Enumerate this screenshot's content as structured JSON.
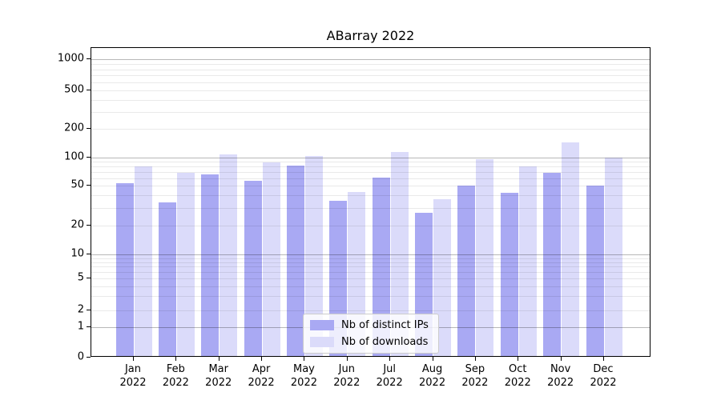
{
  "chart_data": {
    "type": "bar",
    "title": "ABarray 2022",
    "categories": [
      "Jan 2022",
      "Feb 2022",
      "Mar 2022",
      "Apr 2022",
      "May 2022",
      "Jun 2022",
      "Jul 2022",
      "Aug 2022",
      "Sep 2022",
      "Oct 2022",
      "Nov 2022",
      "Dec 2022"
    ],
    "series": [
      {
        "name": "Nb of distinct IPs",
        "color": "#a9a9f3",
        "values": [
          51,
          33,
          63,
          54,
          79,
          34,
          59,
          26,
          48,
          41,
          66,
          48
        ]
      },
      {
        "name": "Nb of downloads",
        "color": "#dbdbfa",
        "values": [
          77,
          66,
          104,
          85,
          100,
          42,
          110,
          35,
          92,
          77,
          139,
          96
        ]
      }
    ],
    "xlabel": "",
    "ylabel": "",
    "y_axis": {
      "scale": "log-like (0 baseline, log above 1)",
      "ticks": [
        0,
        1,
        2,
        5,
        10,
        20,
        50,
        100,
        200,
        500,
        1000
      ],
      "range": [
        0,
        1400
      ],
      "major_grid_at": [
        1,
        10,
        100,
        1000
      ],
      "grid": true
    },
    "legend": {
      "position": "lower center",
      "entries": [
        "Nb of distinct IPs",
        "Nb of downloads"
      ]
    }
  },
  "colors": {
    "bar_distinct_ips": "#a9a9f3",
    "bar_downloads": "#dbdbfa",
    "major_grid": "#b3b3b3",
    "minor_grid": "#e8e8e8",
    "spine": "#000000",
    "legend_border": "#cccccc",
    "background": "#ffffff"
  }
}
